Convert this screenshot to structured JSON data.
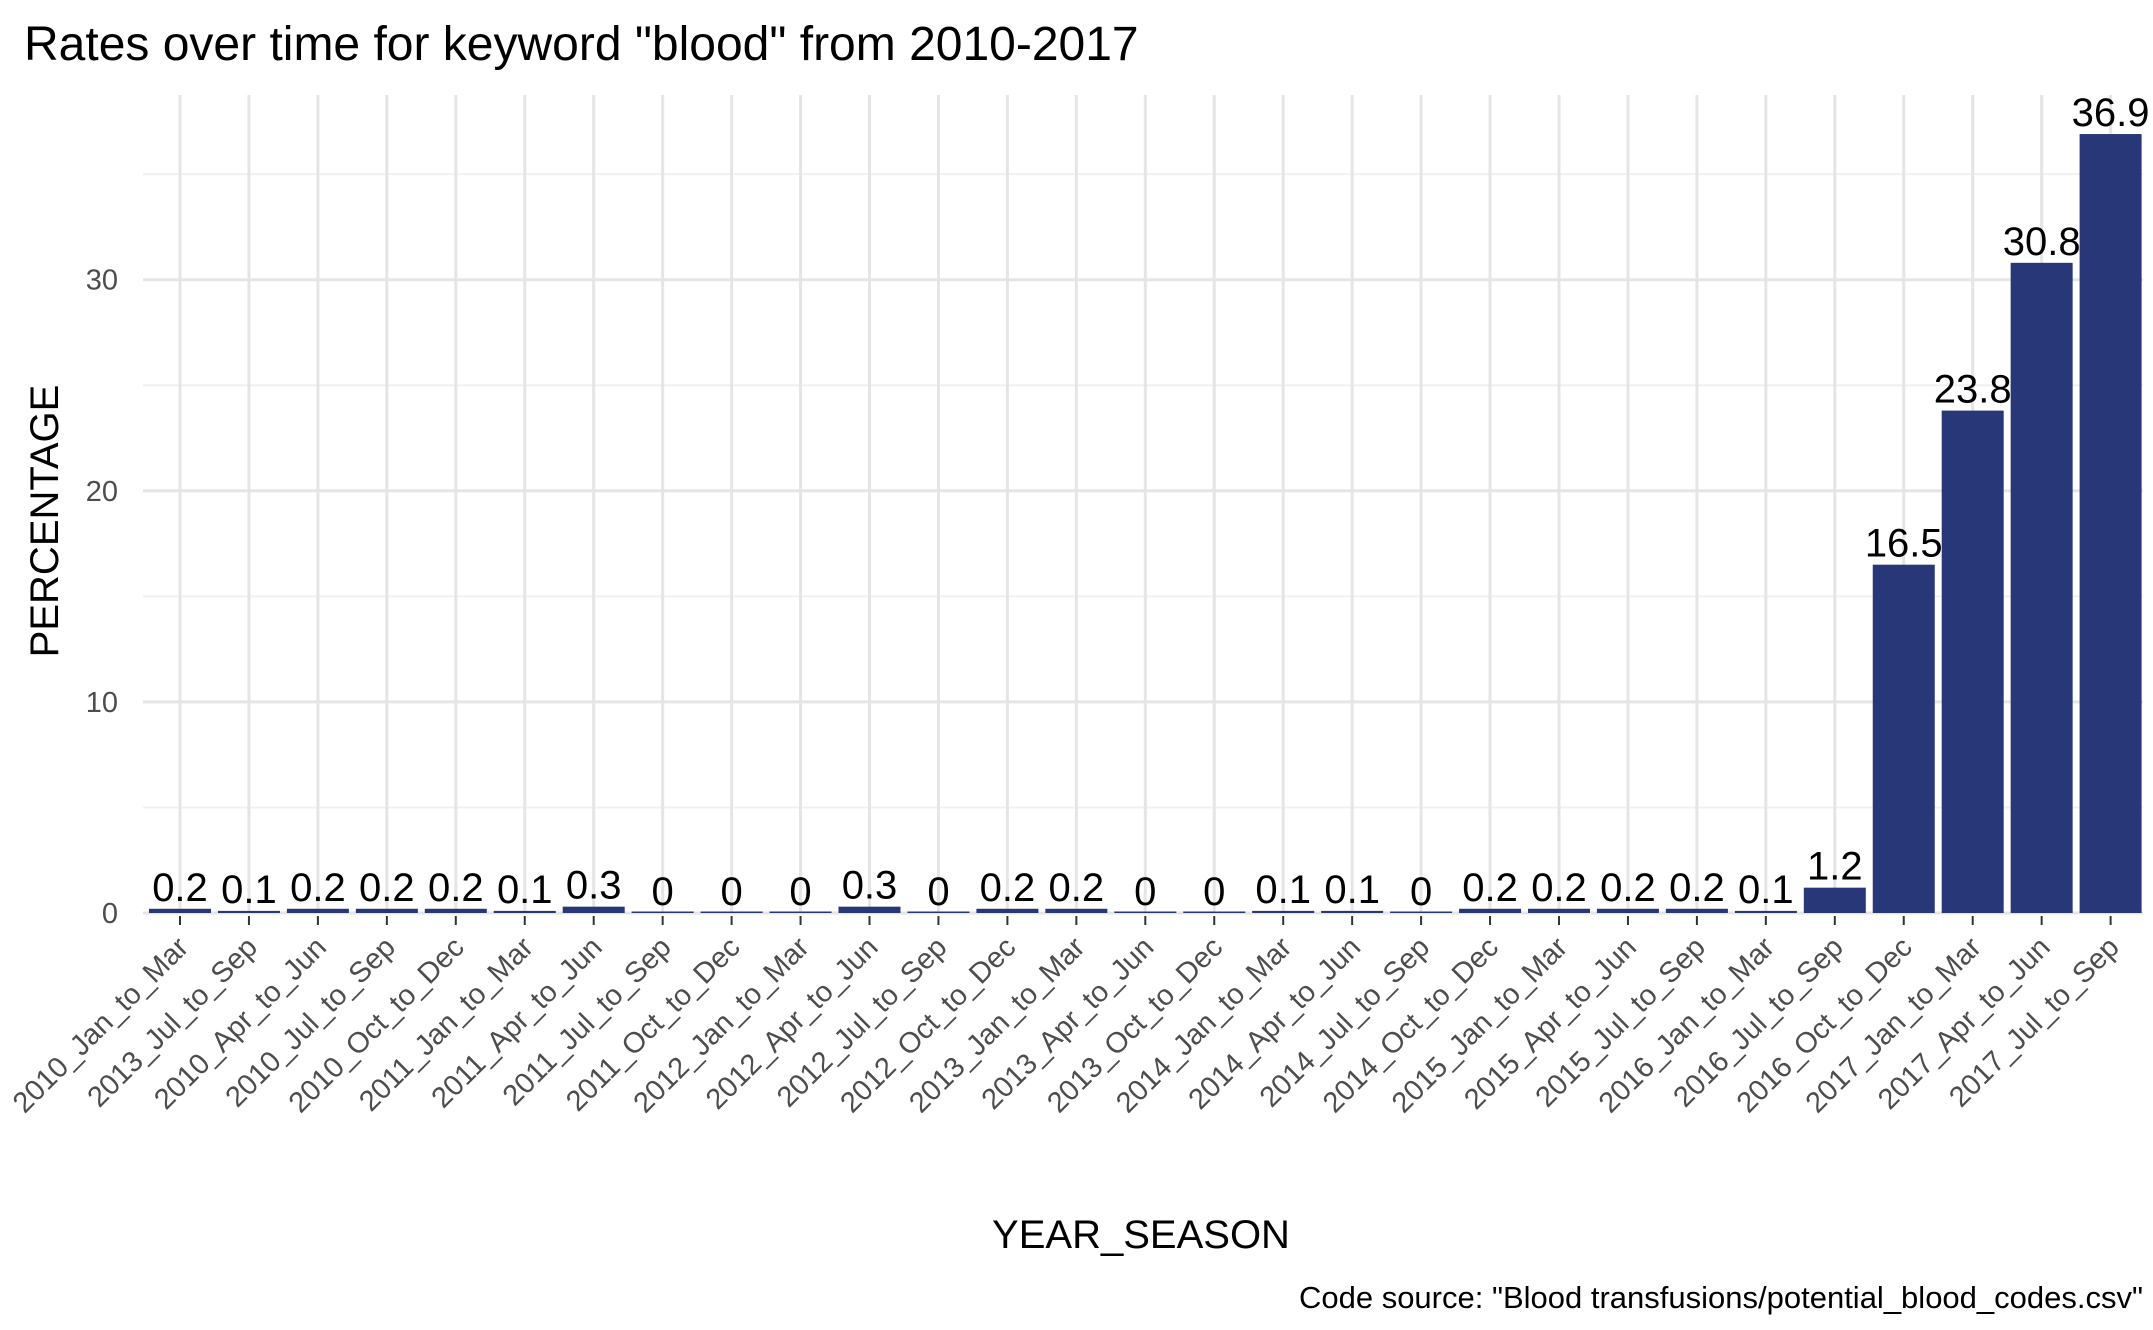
{
  "chart_data": {
    "type": "bar",
    "title": "Rates over time for keyword \"blood\" from 2010-2017",
    "xlabel": "YEAR_SEASON",
    "ylabel": "PERCENTAGE",
    "caption": "Code source: \"Blood transfusions/potential_blood_codes.csv\"",
    "ylim": [
      0,
      38.75
    ],
    "yticks": [
      0,
      10,
      20,
      30
    ],
    "grid": true,
    "bar_color": "#273778",
    "categories": [
      "2010_Jan_to_Mar",
      "2013_Jul_to_Sep",
      "2010_Apr_to_Jun",
      "2010_Jul_to_Sep",
      "2010_Oct_to_Dec",
      "2011_Jan_to_Mar",
      "2011_Apr_to_Jun",
      "2011_Jul_to_Sep",
      "2011_Oct_to_Dec",
      "2012_Jan_to_Mar",
      "2012_Apr_to_Jun",
      "2012_Jul_to_Sep",
      "2012_Oct_to_Dec",
      "2013_Jan_to_Mar",
      "2013_Apr_to_Jun",
      "2013_Oct_to_Dec",
      "2014_Jan_to_Mar",
      "2014_Apr_to_Jun",
      "2014_Jul_to_Sep",
      "2014_Oct_to_Dec",
      "2015_Jan_to_Mar",
      "2015_Apr_to_Jun",
      "2015_Jul_to_Sep",
      "2016_Jan_to_Mar",
      "2016_Jul_to_Sep",
      "2016_Oct_to_Dec",
      "2017_Jan_to_Mar",
      "2017_Apr_to_Jun",
      "2017_Jul_to_Sep"
    ],
    "values": [
      0.2,
      0.1,
      0.2,
      0.2,
      0.2,
      0.1,
      0.3,
      0,
      0,
      0,
      0.3,
      0,
      0.2,
      0.2,
      0,
      0,
      0.1,
      0.1,
      0,
      0.2,
      0.2,
      0.2,
      0.2,
      0.1,
      1.2,
      16.5,
      23.8,
      30.8,
      36.9
    ],
    "data_labels": [
      "0.2",
      "0.1",
      "0.2",
      "0.2",
      "0.2",
      "0.1",
      "0.3",
      "0",
      "0",
      "0",
      "0.3",
      "0",
      "0.2",
      "0.2",
      "0",
      "0",
      "0.1",
      "0.1",
      "0",
      "0.2",
      "0.2",
      "0.2",
      "0.2",
      "0.1",
      "1.2",
      "16.5",
      "23.8",
      "30.8",
      "36.9"
    ]
  }
}
